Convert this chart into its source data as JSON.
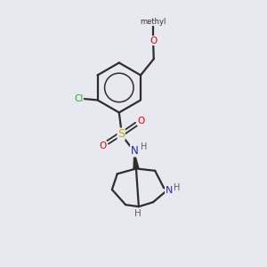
{
  "background_color": "#e8e8f0",
  "bond_color": "#2d2d2d",
  "atom_colors": {
    "O": "#e00000",
    "N": "#2020cc",
    "S": "#bbaa00",
    "Cl": "#22aa22",
    "H": "#606060",
    "C": "#2d2d2d"
  },
  "figsize": [
    3.0,
    3.0
  ],
  "dpi": 100
}
